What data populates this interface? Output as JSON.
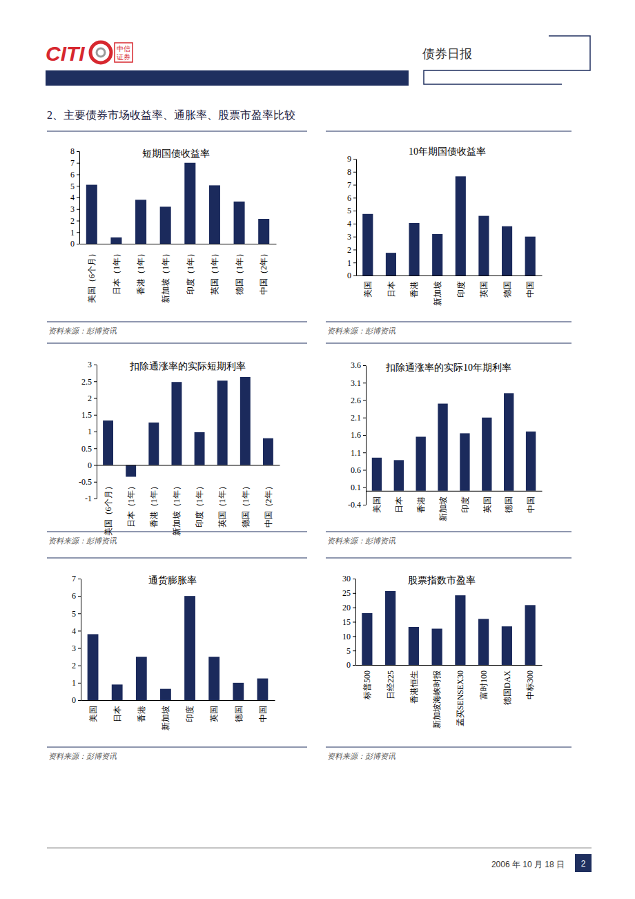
{
  "header": {
    "logo": "CITI",
    "logo_cn": [
      "中信",
      "证券"
    ],
    "report_name": "债券日报"
  },
  "section_title": "2、主要债券市场收益率、通胀率、股票市盈率比较",
  "chart_data": [
    {
      "type": "bar",
      "title": "短期国债收益率",
      "categories": [
        "美国（6个月）",
        "日本（1年）",
        "香港（1年）",
        "新加坡（1年）",
        "印度（1年）",
        "英国（1年）",
        "德国（1年）",
        "中国（2年）"
      ],
      "values": [
        5.1,
        0.55,
        3.8,
        3.2,
        7.0,
        5.05,
        3.65,
        2.15
      ],
      "color": "#1b2a5c",
      "ylim": [
        0,
        8
      ],
      "yticks": [
        0,
        1,
        2,
        3,
        4,
        5,
        6,
        7,
        8
      ]
    },
    {
      "type": "bar",
      "title": "10年期国债收益率",
      "categories": [
        "美国",
        "日本",
        "香港",
        "新加坡",
        "印度",
        "英国",
        "德国",
        "中国"
      ],
      "values": [
        4.75,
        1.75,
        4.05,
        3.2,
        7.65,
        4.6,
        3.8,
        3.0
      ],
      "color": "#1b2a5c",
      "ylim": [
        0,
        9
      ],
      "yticks": [
        0,
        1,
        2,
        3,
        4,
        5,
        6,
        7,
        8,
        9
      ]
    },
    {
      "type": "bar",
      "title": "扣除通涨率的实际短期利率",
      "categories": [
        "美国（6个月）",
        "日本（1年）",
        "香港（1年）",
        "新加坡（1年）",
        "印度（1年）",
        "英国（1年）",
        "德国（1年）",
        "中国（2年）"
      ],
      "values": [
        1.33,
        -0.35,
        1.27,
        2.48,
        0.98,
        2.52,
        2.63,
        0.8
      ],
      "color": "#1b2a5c",
      "ylim": [
        -1,
        3
      ],
      "yticks": [
        -1,
        -0.5,
        0,
        0.5,
        1,
        1.5,
        2,
        2.5,
        3
      ]
    },
    {
      "type": "bar",
      "title": "扣除通涨率的实际10年期利率",
      "categories": [
        "美国",
        "日本",
        "香港",
        "新加坡",
        "印度",
        "英国",
        "德国",
        "中国"
      ],
      "values": [
        0.95,
        0.88,
        1.55,
        2.5,
        1.65,
        2.1,
        2.8,
        1.7
      ],
      "color": "#1b2a5c",
      "ylim": [
        -0.4,
        3.6
      ],
      "yticks": [
        -0.4,
        0.1,
        0.6,
        1.1,
        1.6,
        2.1,
        2.6,
        3.1,
        3.6
      ]
    },
    {
      "type": "bar",
      "title": "通货膨胀率",
      "categories": [
        "美国",
        "日本",
        "香港",
        "新加坡",
        "印度",
        "英国",
        "德国",
        "中国"
      ],
      "values": [
        3.8,
        0.9,
        2.5,
        0.65,
        6.0,
        2.5,
        1.0,
        1.25
      ],
      "color": "#1b2a5c",
      "ylim": [
        0,
        7
      ],
      "yticks": [
        0,
        1,
        2,
        3,
        4,
        5,
        6,
        7
      ]
    },
    {
      "type": "bar",
      "title": "股票指数市盈率",
      "categories": [
        "标普500",
        "日经225",
        "香港恒生",
        "新加坡海峡时报",
        "孟买SENSEX30",
        "富时100",
        "德国DAX",
        "中标300"
      ],
      "values": [
        18,
        25.7,
        13.2,
        12.6,
        24.2,
        16.0,
        13.4,
        20.8
      ],
      "color": "#1b2a5c",
      "ylim": [
        0,
        30
      ],
      "yticks": [
        0,
        5,
        10,
        15,
        20,
        25,
        30
      ]
    }
  ],
  "sources": [
    "资料来源：彭博资讯",
    "资料来源：彭博资讯",
    "资料来源：彭博资讯",
    "资料来源：彭博资讯",
    "资料来源：彭博资讯",
    "资料来源：彭博资讯"
  ],
  "footer": {
    "date": "2006 年 10 月 18 日",
    "page": 2
  }
}
